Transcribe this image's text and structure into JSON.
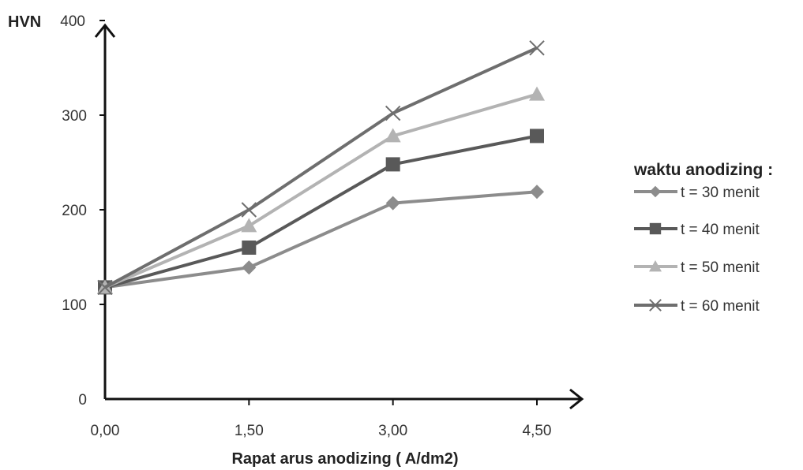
{
  "chart_data": {
    "type": "line",
    "title": "",
    "xlabel": "Rapat arus anodizing ( A/dm2)",
    "ylabel": "HVN",
    "categories": [
      "0,00",
      "1,50",
      "3,00",
      "4,50"
    ],
    "x": [
      0,
      1.5,
      3,
      4.5
    ],
    "ylim": [
      0,
      400
    ],
    "yticks": [
      0,
      100,
      200,
      300,
      400
    ],
    "grid": false,
    "legend": {
      "title": "waktu anodizing :",
      "placement": "right"
    },
    "series": [
      {
        "name": "t = 30 menit",
        "values": [
          118,
          139,
          207,
          219
        ],
        "marker": "diamond",
        "color": "#8c8c8c"
      },
      {
        "name": "t = 40 menit",
        "values": [
          118,
          160,
          248,
          278
        ],
        "marker": "square",
        "color": "#595959"
      },
      {
        "name": "t = 50 menit",
        "values": [
          118,
          183,
          278,
          322
        ],
        "marker": "triangle",
        "color": "#b3b3b3"
      },
      {
        "name": "t = 60 menit",
        "values": [
          118,
          200,
          302,
          371
        ],
        "marker": "x",
        "color": "#6e6e6e"
      }
    ]
  }
}
